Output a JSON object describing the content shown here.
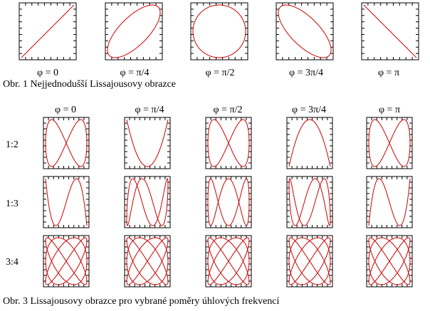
{
  "figure1": {
    "caption": "Obr. 1 Nejjednodušší Lissajousovy obrazce",
    "panels": [
      {
        "label": "φ = 0",
        "phase_pi": 0
      },
      {
        "label": "φ = π/4",
        "phase_pi": 0.25
      },
      {
        "label": "φ = π/2",
        "phase_pi": 0.5
      },
      {
        "label": "φ = 3π/4",
        "phase_pi": 0.75
      },
      {
        "label": "φ = π",
        "phase_pi": 1
      }
    ]
  },
  "figure3": {
    "caption": "Obr. 3 Lissajousovy obrazce pro vybrané poměry úhlových frekvencí",
    "columns": [
      {
        "label": "φ = 0",
        "phase_pi": 0
      },
      {
        "label": "φ = π/4",
        "phase_pi": 0.25
      },
      {
        "label": "φ = π/2",
        "phase_pi": 0.5
      },
      {
        "label": "φ = 3π/4",
        "phase_pi": 0.75
      },
      {
        "label": "φ = π",
        "phase_pi": 1
      }
    ],
    "rows": [
      {
        "label": "1:2",
        "a": 1,
        "b": 2
      },
      {
        "label": "1:3",
        "a": 1,
        "b": 3
      },
      {
        "label": "3:4",
        "a": 3,
        "b": 4
      }
    ]
  },
  "curve_color": "#cc0000",
  "frame_color": "#000000"
}
